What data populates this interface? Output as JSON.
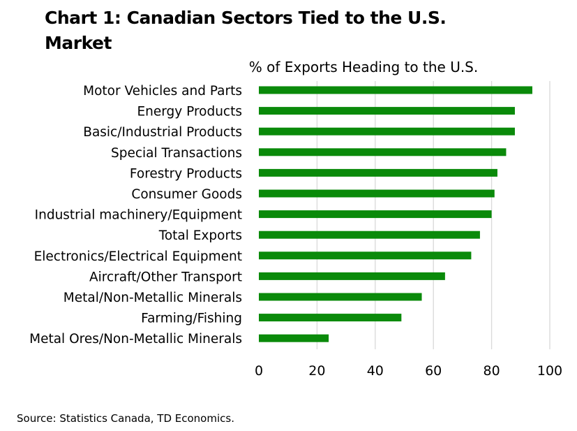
{
  "chart_data": {
    "type": "bar",
    "orientation": "horizontal",
    "title": "Chart 1: Canadian Sectors Tied to the U.S. Market",
    "subtitle": "% of Exports Heading to the U.S.",
    "xlabel": "",
    "ylabel": "",
    "xlim": [
      0,
      100
    ],
    "xticks": [
      "0",
      "20",
      "40",
      "60",
      "80",
      "100"
    ],
    "grid": "vertical",
    "legend": "none",
    "bar_color": "#0a8a0a",
    "grid_color": "#d9d9d9",
    "categories": [
      "Motor Vehicles and Parts",
      "Energy Products",
      "Basic/Industrial Products",
      "Special Transactions",
      "Forestry Products",
      "Consumer Goods",
      "Industrial machinery/Equipment",
      "Total Exports",
      "Electronics/Electrical Equipment",
      "Aircraft/Other Transport",
      "Metal/Non-Metallic Minerals",
      "Farming/Fishing",
      "Metal Ores/Non-Metallic Minerals"
    ],
    "values": [
      94,
      88,
      88,
      85,
      82,
      81,
      80,
      76,
      73,
      64,
      56,
      49,
      24
    ]
  },
  "footer": {
    "source": "Source: Statistics Canada, TD Economics."
  }
}
